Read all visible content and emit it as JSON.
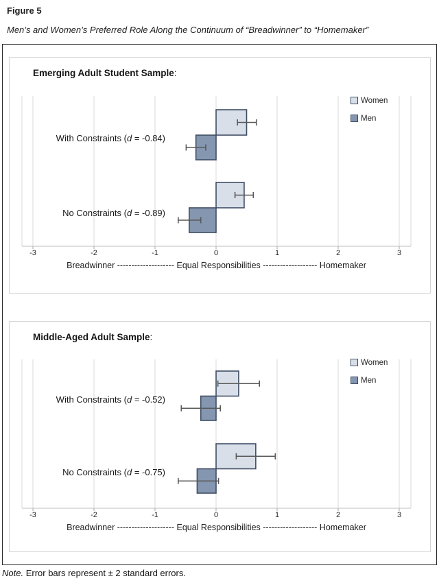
{
  "figure": {
    "label": "Figure 5",
    "title": "Men’s and Women’s Preferred Role Along the Continuum of “Breadwinner” to “Homemaker”",
    "note": {
      "prefix": "Note.",
      "text": " Error bars represent ± 2 standard errors."
    }
  },
  "colors": {
    "women_fill": "#d9dfe9",
    "men_fill": "#8496b0",
    "bar_border": "#3f4d63",
    "gridline": "#d9d9d9",
    "axis_line": "#bfbfbf",
    "tick": "#a6a6a6",
    "error_bar": "#595959",
    "panel_border": "#d4d4d4",
    "outer_border": "#2b2b2b"
  },
  "chart_data": [
    {
      "type": "bar",
      "orientation": "horizontal",
      "sample_heading": "Emerging Adult Student Sample",
      "heading_suffix": ":",
      "xlim": [
        -3,
        3
      ],
      "grid": true,
      "legend_position": "top-right",
      "xticks": [
        "-3",
        "-2",
        "-1",
        "0",
        "1",
        "2",
        "3"
      ],
      "xlabel": "Breadwinner -------------------- Equal Responsibilities ------------------- Homemaker",
      "legend": [
        {
          "name": "Women"
        },
        {
          "name": "Men"
        }
      ],
      "categories": [
        {
          "prefix": "With Constraints (",
          "d": "d",
          "suffix": " = -0.84)"
        },
        {
          "prefix": "No Constraints (",
          "d": "d",
          "suffix": " = -0.89)"
        }
      ],
      "series": [
        {
          "name": "Women",
          "values": [
            0.5,
            0.46
          ],
          "error_low": [
            0.35,
            0.31
          ],
          "error_high": [
            0.66,
            0.61
          ]
        },
        {
          "name": "Men",
          "values": [
            -0.33,
            -0.44
          ],
          "error_low": [
            -0.49,
            -0.62
          ],
          "error_high": [
            -0.17,
            -0.25
          ]
        }
      ]
    },
    {
      "type": "bar",
      "orientation": "horizontal",
      "sample_heading": "Middle-Aged Adult Sample",
      "heading_suffix": ":",
      "xlim": [
        -3,
        3
      ],
      "grid": true,
      "legend_position": "top-right",
      "xticks": [
        "-3",
        "-2",
        "-1",
        "0",
        "1",
        "2",
        "3"
      ],
      "xlabel": "Breadwinner -------------------- Equal Responsibilities ------------------- Homemaker",
      "legend": [
        {
          "name": "Women"
        },
        {
          "name": "Men"
        }
      ],
      "categories": [
        {
          "prefix": "With Constraints (",
          "d": "d",
          "suffix": " = -0.52)"
        },
        {
          "prefix": "No Constraints (",
          "d": "d",
          "suffix": " = -0.75)"
        }
      ],
      "series": [
        {
          "name": "Women",
          "values": [
            0.37,
            0.65
          ],
          "error_low": [
            0.03,
            0.33
          ],
          "error_high": [
            0.71,
            0.97
          ]
        },
        {
          "name": "Men",
          "values": [
            -0.25,
            -0.31
          ],
          "error_low": [
            -0.57,
            -0.62
          ],
          "error_high": [
            0.07,
            0.04
          ]
        }
      ]
    }
  ]
}
